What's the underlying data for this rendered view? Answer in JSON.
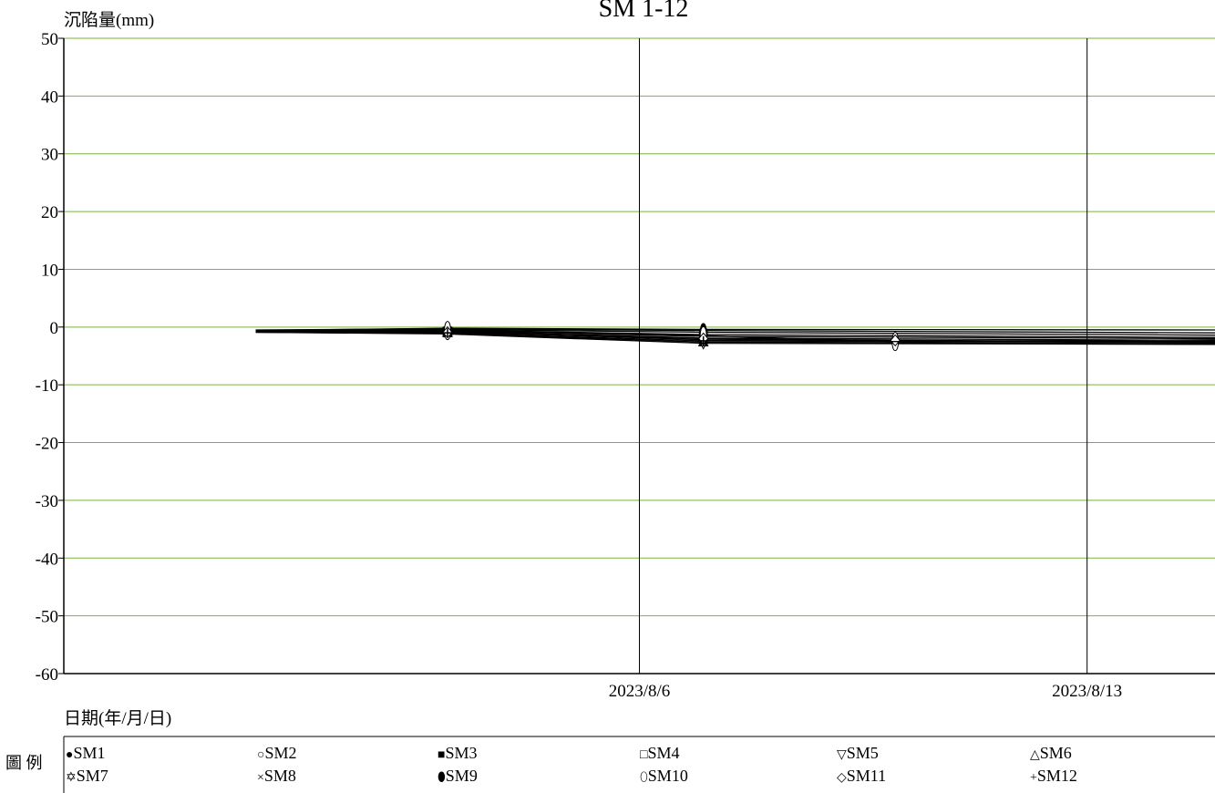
{
  "chart_data": {
    "type": "line",
    "title": "SM 1-12",
    "ylabel": "沉陷量(mm)",
    "xlabel": "日期(年/月/日)",
    "ylim": [
      -60,
      50
    ],
    "yticks": [
      50,
      40,
      30,
      20,
      10,
      0,
      -10,
      -20,
      -30,
      -40,
      -50,
      -60
    ],
    "xlim": [
      "2023/7/28",
      "2023/8/15"
    ],
    "xticks": [
      "2023/8/6",
      "2023/8/13"
    ],
    "grid": {
      "horizontal": true,
      "vertical_at_xticks": true
    },
    "colors": {
      "gridline": "#7ab33a",
      "series": "#000000",
      "axis": "#000000"
    },
    "x": [
      "2023/7/31",
      "2023/8/3",
      "2023/8/7",
      "2023/8/10",
      "2023/8/15"
    ],
    "series": [
      {
        "name": "SM1",
        "marker": "filled-circle",
        "values": [
          -0.5,
          -0.3,
          -0.6,
          null,
          -1.0
        ]
      },
      {
        "name": "SM2",
        "marker": "open-circle",
        "values": [
          -0.6,
          -0.4,
          -0.9,
          null,
          -1.4
        ]
      },
      {
        "name": "SM3",
        "marker": "filled-square",
        "values": [
          -0.7,
          -0.5,
          -1.3,
          null,
          -1.8
        ]
      },
      {
        "name": "SM4",
        "marker": "open-square",
        "values": [
          -0.7,
          -0.6,
          -1.6,
          null,
          -2.0
        ]
      },
      {
        "name": "SM5",
        "marker": "open-triangle-down",
        "values": [
          -0.8,
          -0.7,
          -1.9,
          null,
          -2.3
        ]
      },
      {
        "name": "SM6",
        "marker": "open-triangle-up",
        "values": [
          -0.8,
          -0.8,
          -2.2,
          null,
          -2.6
        ]
      },
      {
        "name": "SM7",
        "marker": "star",
        "values": [
          -0.9,
          -1.2,
          -2.8,
          null,
          -3.0
        ]
      },
      {
        "name": "SM8",
        "marker": "cross",
        "values": [
          -0.9,
          -1.1,
          -2.6,
          null,
          -2.9
        ]
      },
      {
        "name": "SM9",
        "marker": "filled-ellipse",
        "values": [
          -0.6,
          -0.2,
          -0.4,
          null,
          -0.5
        ]
      },
      {
        "name": "SM10",
        "marker": "open-ellipse",
        "values": [
          -0.7,
          -0.6,
          -1.5,
          -2.5,
          -2.2
        ]
      },
      {
        "name": "SM11",
        "marker": "open-diamond",
        "values": [
          -0.8,
          -0.9,
          -2.0,
          -2.3,
          -2.5
        ]
      },
      {
        "name": "SM12",
        "marker": "plus",
        "values": [
          -0.9,
          -1.0,
          -2.4,
          null,
          -2.7
        ]
      }
    ]
  },
  "legend": {
    "title": "圖 例",
    "items": [
      {
        "symbol": "●",
        "label": "SM1"
      },
      {
        "symbol": "○",
        "label": "SM2"
      },
      {
        "symbol": "■",
        "label": "SM3"
      },
      {
        "symbol": "□",
        "label": "SM4"
      },
      {
        "symbol": "▽",
        "label": "SM5"
      },
      {
        "symbol": "△",
        "label": "SM6"
      },
      {
        "symbol": "✡",
        "label": "SM7"
      },
      {
        "symbol": "×",
        "label": "SM8"
      },
      {
        "symbol": "⬮",
        "label": "SM9"
      },
      {
        "symbol": "⬯",
        "label": "SM10"
      },
      {
        "symbol": "◇",
        "label": "SM11"
      },
      {
        "symbol": "+",
        "label": "SM12"
      }
    ]
  }
}
